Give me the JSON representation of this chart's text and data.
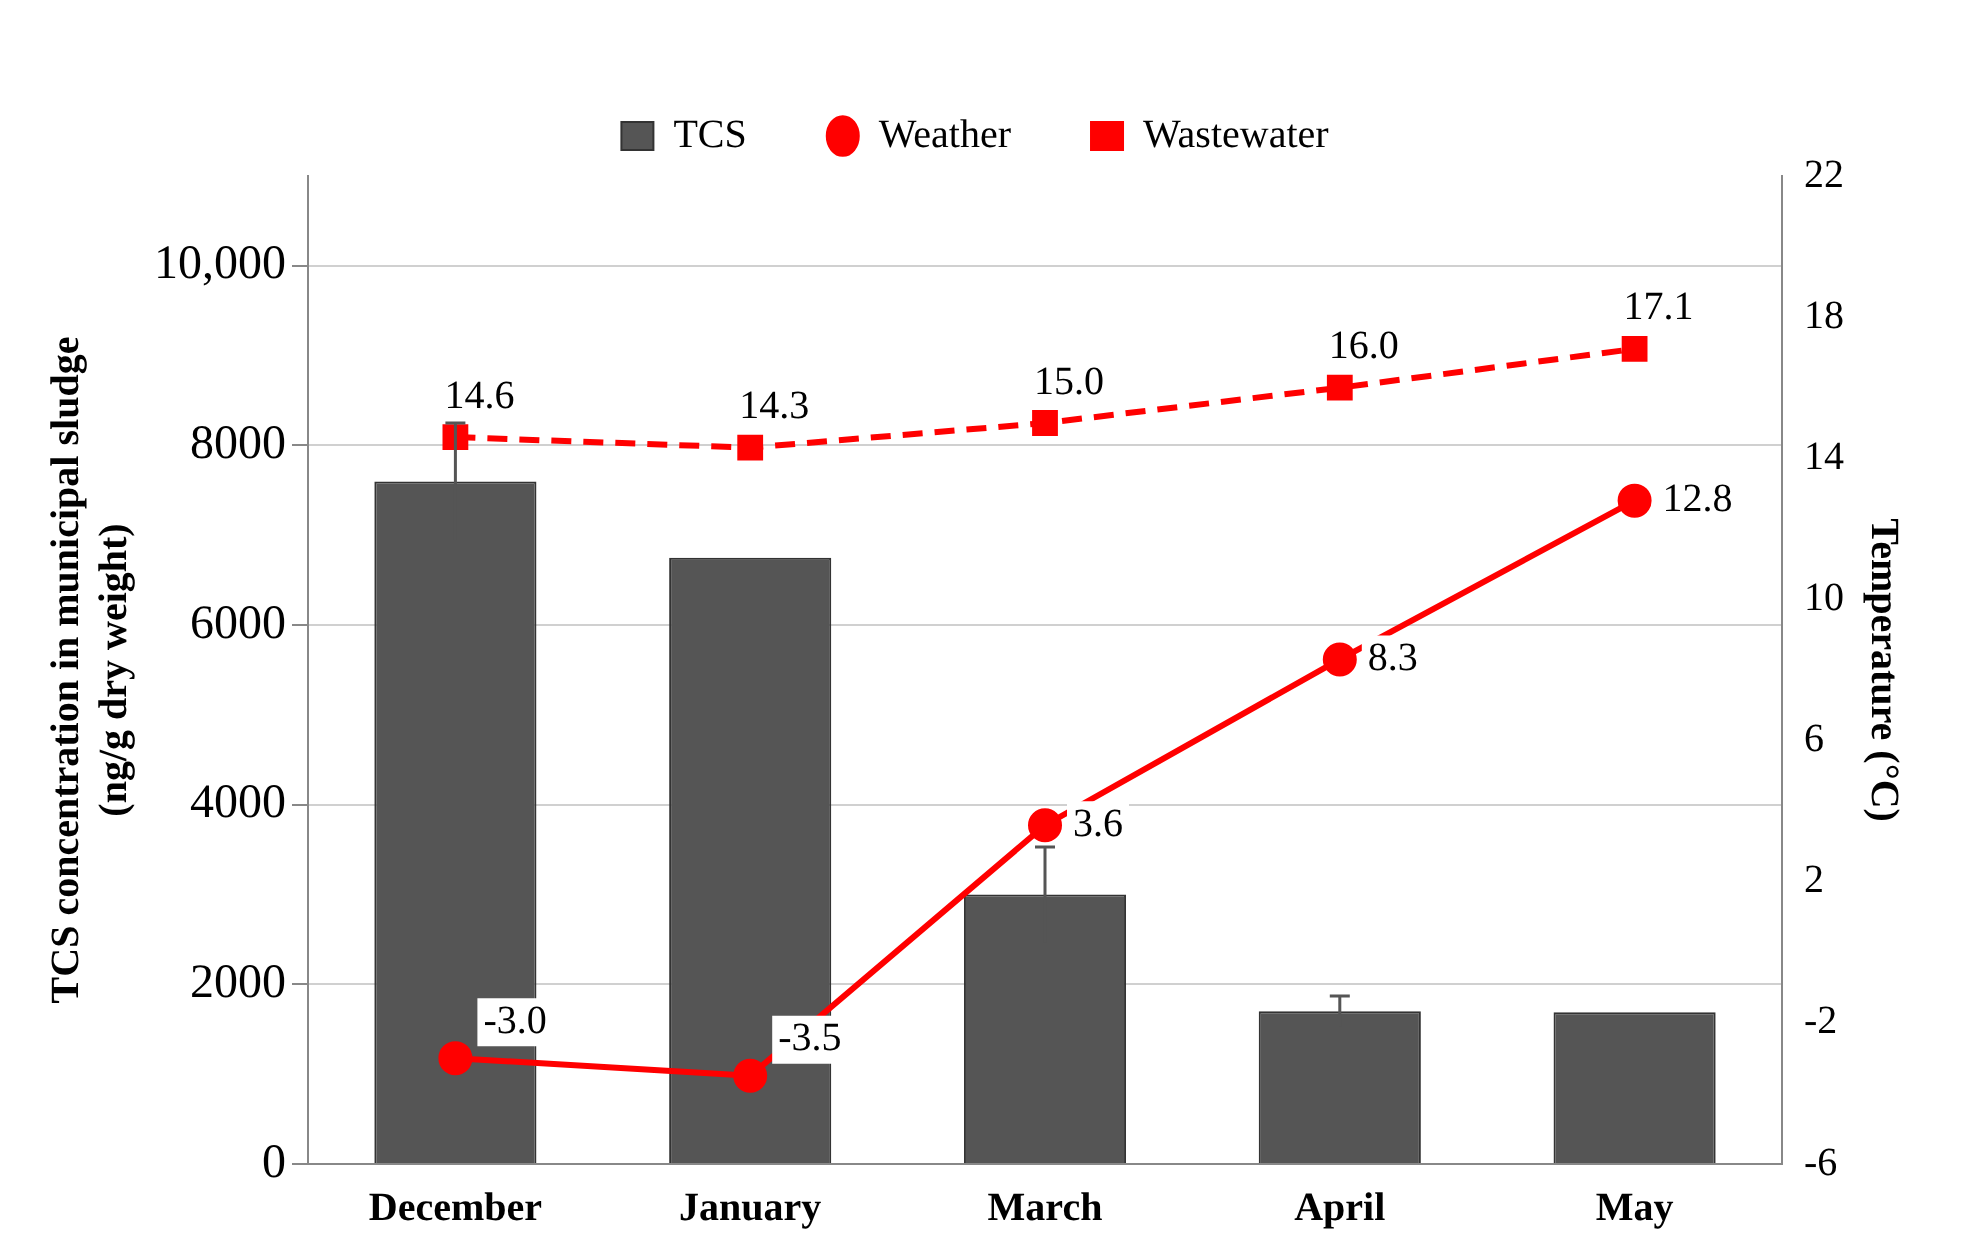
{
  "chart_data": {
    "type": "bar",
    "categories": [
      "December",
      "January",
      "March",
      "April",
      "May"
    ],
    "ylabel": "TCS concentration in municipal sludge\n(ng/g dry weight)",
    "y2label": "Temperature (°C)",
    "ylim": [
      0,
      11000
    ],
    "yticks": [
      0,
      2000,
      4000,
      6000,
      8000,
      {
        "value": 10000,
        "label": "10,000"
      }
    ],
    "y2lim": [
      -6,
      22
    ],
    "y2ticks": [
      -6,
      -2,
      2,
      6,
      10,
      14,
      18,
      22
    ],
    "grid": "y",
    "legend": "top",
    "series": [
      {
        "name": "TCS",
        "color": "#555555",
        "values": [
          7600,
          6750,
          3000,
          1700,
          1690
        ],
        "errors": [
          650,
          null,
          530,
          170,
          null
        ]
      },
      {
        "name": "Weather",
        "type": "line",
        "axis": "y2",
        "color": "#ff0000",
        "marker": "circle",
        "line_style": "solid",
        "values": [
          -3.0,
          -3.5,
          3.6,
          8.3,
          12.8
        ],
        "value_labels": [
          "-3.0",
          "-3.5",
          "3.6",
          "8.3",
          "12.8"
        ]
      },
      {
        "name": "Wastewater",
        "type": "line",
        "axis": "y2",
        "color": "#ff0000",
        "marker": "square",
        "line_style": "dashed",
        "values": [
          14.6,
          14.3,
          15.0,
          16.0,
          17.1
        ],
        "value_labels": [
          "14.6",
          "14.3",
          "15.0",
          "16.0",
          "17.1"
        ]
      }
    ]
  }
}
